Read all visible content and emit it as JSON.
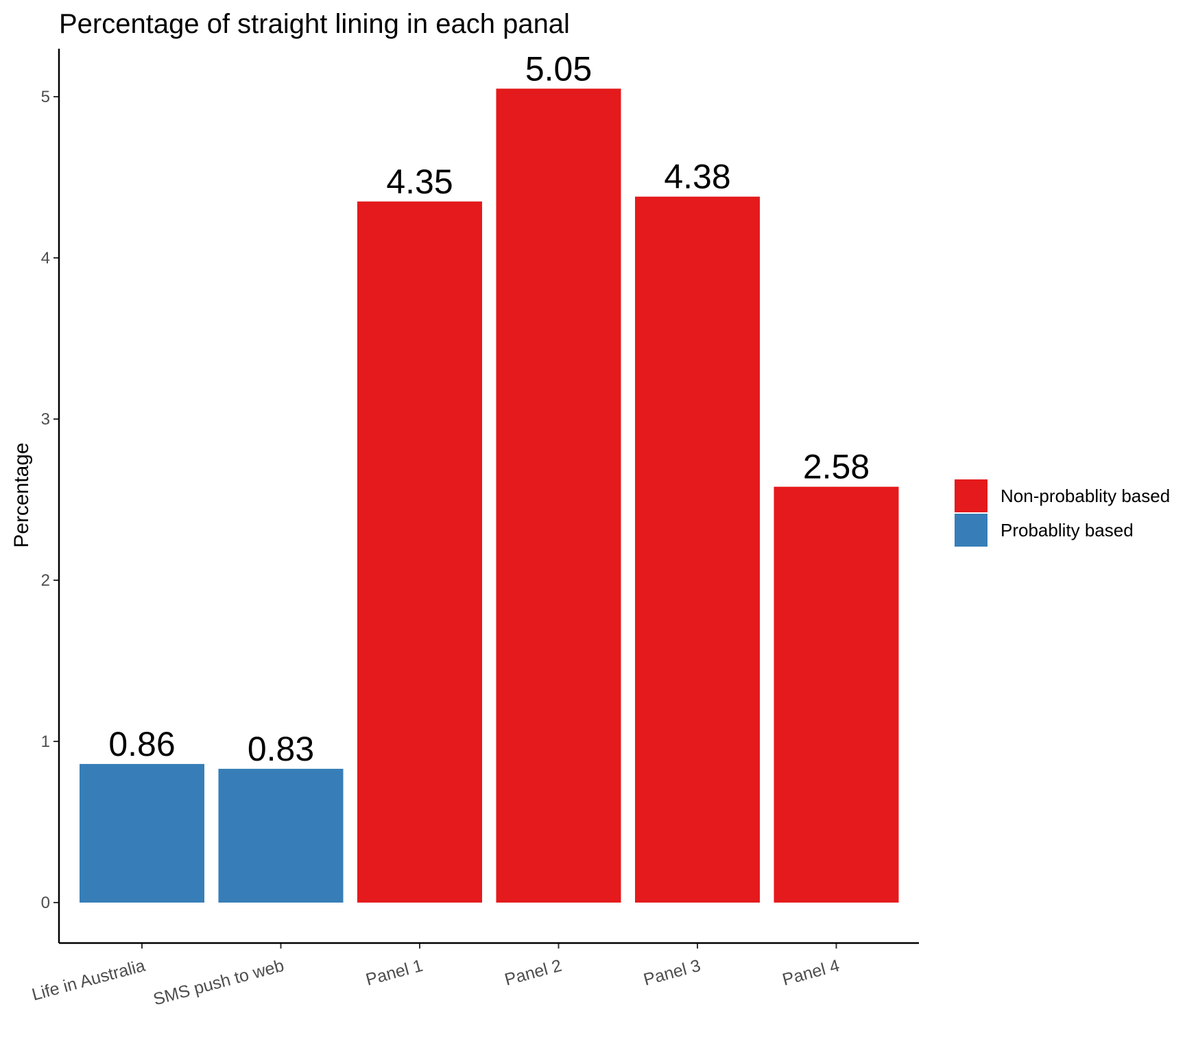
{
  "chart_data": {
    "type": "bar",
    "title": "Percentage of straight lining in each panal",
    "xlabel": "",
    "ylabel": "Percentage",
    "ylim": [
      0,
      5.3
    ],
    "yticks": [
      0,
      1,
      2,
      3,
      4,
      5
    ],
    "categories": [
      "Life in Australia",
      "SMS push to web",
      "Panel 1",
      "Panel 2",
      "Panel 3",
      "Panel 4"
    ],
    "values": [
      0.86,
      0.83,
      4.35,
      5.05,
      4.38,
      2.58
    ],
    "groups": [
      "Probablity based",
      "Probablity based",
      "Non-probablity based",
      "Non-probablity based",
      "Non-probablity based",
      "Non-probablity based"
    ],
    "legend": {
      "placement": "right",
      "entries": [
        {
          "name": "Non-probablity based",
          "color": "#e41a1c"
        },
        {
          "name": "Probablity based",
          "color": "#377eb8"
        }
      ]
    },
    "grid": false
  }
}
